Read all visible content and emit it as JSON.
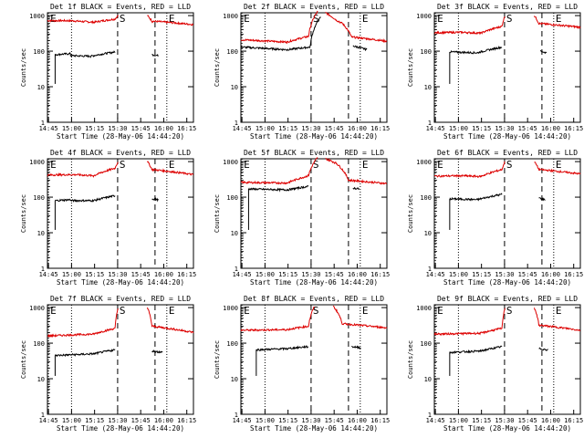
{
  "chart_data": {
    "type": "line",
    "figure_title": "",
    "panels": [
      {
        "title": "Det 1f BLACK = Events, RED = LLD",
        "detector": 1,
        "events": [
          {
            "t0": 5,
            "t1": 15,
            "y0": 80,
            "y1": 85
          },
          {
            "t0": 15,
            "t1": 28,
            "y0": 75,
            "y1": 72
          },
          {
            "t0": 28,
            "t1": 44,
            "y0": 72,
            "y1": 95
          }
        ],
        "events_after": [
          {
            "t0": 68,
            "t1": 72,
            "y0": 80,
            "y1": 75
          }
        ],
        "lld": [
          {
            "t0": 0,
            "t1": 15,
            "y0": 720,
            "y1": 720
          },
          {
            "t0": 15,
            "t1": 30,
            "y0": 720,
            "y1": 650
          },
          {
            "t0": 30,
            "t1": 44,
            "y0": 650,
            "y1": 800
          },
          {
            "t0": 44,
            "t1": 46,
            "y0": 800,
            "y1": 1000
          }
        ],
        "lld_after": [
          {
            "t0": 65,
            "t1": 68,
            "y0": 1000,
            "y1": 700
          },
          {
            "t0": 68,
            "t1": 95,
            "y0": 700,
            "y1": 560
          }
        ]
      },
      {
        "title": "Det 2f BLACK = Events, RED = LLD",
        "detector": 2,
        "events": [
          {
            "t0": 0,
            "t1": 30,
            "y0": 130,
            "y1": 110
          },
          {
            "t0": 30,
            "t1": 45,
            "y0": 110,
            "y1": 130
          },
          {
            "t0": 45,
            "t1": 52,
            "y0": 130,
            "y1": 900
          }
        ],
        "events_after": [
          {
            "t0": 73,
            "t1": 82,
            "y0": 140,
            "y1": 110
          }
        ],
        "lld": [
          {
            "t0": 0,
            "t1": 30,
            "y0": 210,
            "y1": 180
          },
          {
            "t0": 30,
            "t1": 44,
            "y0": 180,
            "y1": 260
          },
          {
            "t0": 44,
            "t1": 50,
            "y0": 260,
            "y1": 1300
          }
        ],
        "lld_after": [
          {
            "t0": 55,
            "t1": 62,
            "y0": 1200,
            "y1": 750
          },
          {
            "t0": 62,
            "t1": 66,
            "y0": 750,
            "y1": 600
          },
          {
            "t0": 66,
            "t1": 72,
            "y0": 600,
            "y1": 250
          },
          {
            "t0": 72,
            "t1": 95,
            "y0": 250,
            "y1": 190
          }
        ]
      },
      {
        "title": "Det 3f BLACK = Events, RED = LLD",
        "detector": 3,
        "events": [
          {
            "t0": 10,
            "t1": 28,
            "y0": 95,
            "y1": 90
          },
          {
            "t0": 28,
            "t1": 44,
            "y0": 90,
            "y1": 130
          }
        ],
        "events_after": [
          {
            "t0": 69,
            "t1": 73,
            "y0": 100,
            "y1": 90
          }
        ],
        "lld": [
          {
            "t0": 0,
            "t1": 18,
            "y0": 330,
            "y1": 340
          },
          {
            "t0": 18,
            "t1": 30,
            "y0": 340,
            "y1": 320
          },
          {
            "t0": 30,
            "t1": 44,
            "y0": 320,
            "y1": 500
          },
          {
            "t0": 44,
            "t1": 46,
            "y0": 500,
            "y1": 1000
          }
        ],
        "lld_after": [
          {
            "t0": 65,
            "t1": 68,
            "y0": 1000,
            "y1": 600
          },
          {
            "t0": 68,
            "t1": 95,
            "y0": 600,
            "y1": 470
          }
        ]
      },
      {
        "title": "Det 4f BLACK = Events, RED = LLD",
        "detector": 4,
        "events": [
          {
            "t0": 5,
            "t1": 15,
            "y0": 80,
            "y1": 85
          },
          {
            "t0": 15,
            "t1": 30,
            "y0": 80,
            "y1": 80
          },
          {
            "t0": 30,
            "t1": 44,
            "y0": 80,
            "y1": 110
          }
        ],
        "events_after": [
          {
            "t0": 68,
            "t1": 72,
            "y0": 90,
            "y1": 85
          }
        ],
        "lld": [
          {
            "t0": 0,
            "t1": 18,
            "y0": 420,
            "y1": 430
          },
          {
            "t0": 18,
            "t1": 30,
            "y0": 430,
            "y1": 400
          },
          {
            "t0": 30,
            "t1": 44,
            "y0": 400,
            "y1": 650
          },
          {
            "t0": 44,
            "t1": 46,
            "y0": 650,
            "y1": 1000
          }
        ],
        "lld_after": [
          {
            "t0": 65,
            "t1": 68,
            "y0": 1000,
            "y1": 600
          },
          {
            "t0": 68,
            "t1": 95,
            "y0": 600,
            "y1": 430
          }
        ]
      },
      {
        "title": "Det 5f BLACK = Events, RED = LLD",
        "detector": 5,
        "events": [
          {
            "t0": 5,
            "t1": 30,
            "y0": 170,
            "y1": 160
          },
          {
            "t0": 30,
            "t1": 44,
            "y0": 160,
            "y1": 200
          }
        ],
        "events_after": [
          {
            "t0": 73,
            "t1": 77,
            "y0": 180,
            "y1": 170
          }
        ],
        "lld": [
          {
            "t0": 0,
            "t1": 30,
            "y0": 260,
            "y1": 250
          },
          {
            "t0": 30,
            "t1": 44,
            "y0": 250,
            "y1": 400
          },
          {
            "t0": 44,
            "t1": 50,
            "y0": 400,
            "y1": 1300
          }
        ],
        "lld_after": [
          {
            "t0": 55,
            "t1": 62,
            "y0": 1200,
            "y1": 900
          },
          {
            "t0": 62,
            "t1": 70,
            "y0": 900,
            "y1": 300
          },
          {
            "t0": 70,
            "t1": 95,
            "y0": 300,
            "y1": 240
          }
        ]
      },
      {
        "title": "Det 6f BLACK = Events, RED = LLD",
        "detector": 6,
        "events": [
          {
            "t0": 10,
            "t1": 28,
            "y0": 90,
            "y1": 85
          },
          {
            "t0": 28,
            "t1": 44,
            "y0": 85,
            "y1": 120
          }
        ],
        "events_after": [
          {
            "t0": 68,
            "t1": 72,
            "y0": 95,
            "y1": 85
          }
        ],
        "lld": [
          {
            "t0": 0,
            "t1": 18,
            "y0": 390,
            "y1": 400
          },
          {
            "t0": 18,
            "t1": 30,
            "y0": 400,
            "y1": 380
          },
          {
            "t0": 30,
            "t1": 44,
            "y0": 380,
            "y1": 600
          },
          {
            "t0": 44,
            "t1": 46,
            "y0": 600,
            "y1": 1000
          }
        ],
        "lld_after": [
          {
            "t0": 65,
            "t1": 68,
            "y0": 1000,
            "y1": 600
          },
          {
            "t0": 68,
            "t1": 95,
            "y0": 600,
            "y1": 450
          }
        ]
      },
      {
        "title": "Det 7f BLACK = Events, RED = LLD",
        "detector": 7,
        "events": [
          {
            "t0": 5,
            "t1": 30,
            "y0": 45,
            "y1": 50
          },
          {
            "t0": 30,
            "t1": 44,
            "y0": 50,
            "y1": 65
          }
        ],
        "events_after": [
          {
            "t0": 68,
            "t1": 75,
            "y0": 60,
            "y1": 55
          }
        ],
        "lld": [
          {
            "t0": 0,
            "t1": 30,
            "y0": 160,
            "y1": 180
          },
          {
            "t0": 30,
            "t1": 44,
            "y0": 180,
            "y1": 260
          },
          {
            "t0": 44,
            "t1": 46,
            "y0": 260,
            "y1": 1000
          }
        ],
        "lld_after": [
          {
            "t0": 65,
            "t1": 68,
            "y0": 1000,
            "y1": 300
          },
          {
            "t0": 68,
            "t1": 95,
            "y0": 300,
            "y1": 200
          }
        ]
      },
      {
        "title": "Det 8f BLACK = Events, RED = LLD",
        "detector": 8,
        "events": [
          {
            "t0": 10,
            "t1": 30,
            "y0": 65,
            "y1": 70
          },
          {
            "t0": 30,
            "t1": 44,
            "y0": 70,
            "y1": 80
          }
        ],
        "events_after": [
          {
            "t0": 72,
            "t1": 78,
            "y0": 80,
            "y1": 75
          }
        ],
        "lld": [
          {
            "t0": 0,
            "t1": 30,
            "y0": 230,
            "y1": 240
          },
          {
            "t0": 30,
            "t1": 44,
            "y0": 240,
            "y1": 300
          },
          {
            "t0": 44,
            "t1": 48,
            "y0": 300,
            "y1": 1100
          }
        ],
        "lld_after": [
          {
            "t0": 60,
            "t1": 66,
            "y0": 1100,
            "y1": 350
          },
          {
            "t0": 66,
            "t1": 95,
            "y0": 350,
            "y1": 270
          }
        ]
      },
      {
        "title": "Det 9f BLACK = Events, RED = LLD",
        "detector": 9,
        "events": [
          {
            "t0": 10,
            "t1": 30,
            "y0": 55,
            "y1": 60
          },
          {
            "t0": 30,
            "t1": 44,
            "y0": 60,
            "y1": 80
          }
        ],
        "events_after": [
          {
            "t0": 68,
            "t1": 74,
            "y0": 70,
            "y1": 65
          }
        ],
        "lld": [
          {
            "t0": 0,
            "t1": 30,
            "y0": 180,
            "y1": 190
          },
          {
            "t0": 30,
            "t1": 44,
            "y0": 190,
            "y1": 260
          },
          {
            "t0": 44,
            "t1": 46,
            "y0": 260,
            "y1": 1000
          }
        ],
        "lld_after": [
          {
            "t0": 65,
            "t1": 68,
            "y0": 1000,
            "y1": 320
          },
          {
            "t0": 68,
            "t1": 95,
            "y0": 320,
            "y1": 230
          }
        ]
      }
    ],
    "xlabel": "Start Time (28-May-06 14:44:20)",
    "ylabel": "Counts/sec",
    "x_tick_labels": [
      "14:45",
      "15:00",
      "15:15",
      "15:30",
      "15:45",
      "16:00",
      "16:15"
    ],
    "x_tick_minutes": [
      0.67,
      15.67,
      30.67,
      45.67,
      60.67,
      75.67,
      90.67
    ],
    "xlim_minutes": [
      0,
      95
    ],
    "y_tick_labels": [
      "1",
      "10",
      "100",
      "1000"
    ],
    "y_tick_values": [
      1,
      10,
      100,
      1000
    ],
    "ylim": [
      1,
      1200
    ],
    "yscale": "log",
    "markers": [
      {
        "label": "E",
        "minute": 0.67,
        "style": "dotted"
      },
      {
        "label": "",
        "minute": 15.67,
        "style": "dotted"
      },
      {
        "label": "S",
        "minute": 45.67,
        "style": "dashed"
      },
      {
        "label": "",
        "minute": 70.0,
        "style": "dashed"
      },
      {
        "label": "E",
        "minute": 77.67,
        "style": "dotted"
      }
    ],
    "series": [
      {
        "name": "Events",
        "color": "#000000"
      },
      {
        "name": "LLD",
        "color": "#dd0000"
      }
    ]
  }
}
